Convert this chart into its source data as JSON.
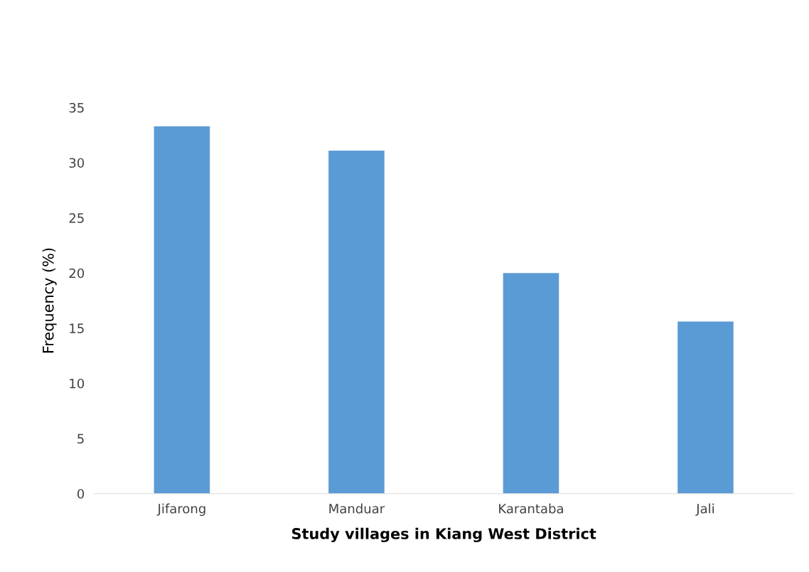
{
  "chart_data": {
    "type": "bar",
    "xlabel": "Study villages in Kiang West District",
    "ylabel": "Frequency (%)",
    "categories": [
      "Jifarong",
      "Manduar",
      "Karantaba",
      "Jali"
    ],
    "values": [
      33.3,
      31.1,
      20.0,
      15.6
    ],
    "color": "#5b9bd5",
    "ylim": [
      0,
      35
    ],
    "yticks": [
      0,
      5,
      10,
      15,
      20,
      25,
      30,
      35
    ],
    "grid": false,
    "legend": false
  }
}
